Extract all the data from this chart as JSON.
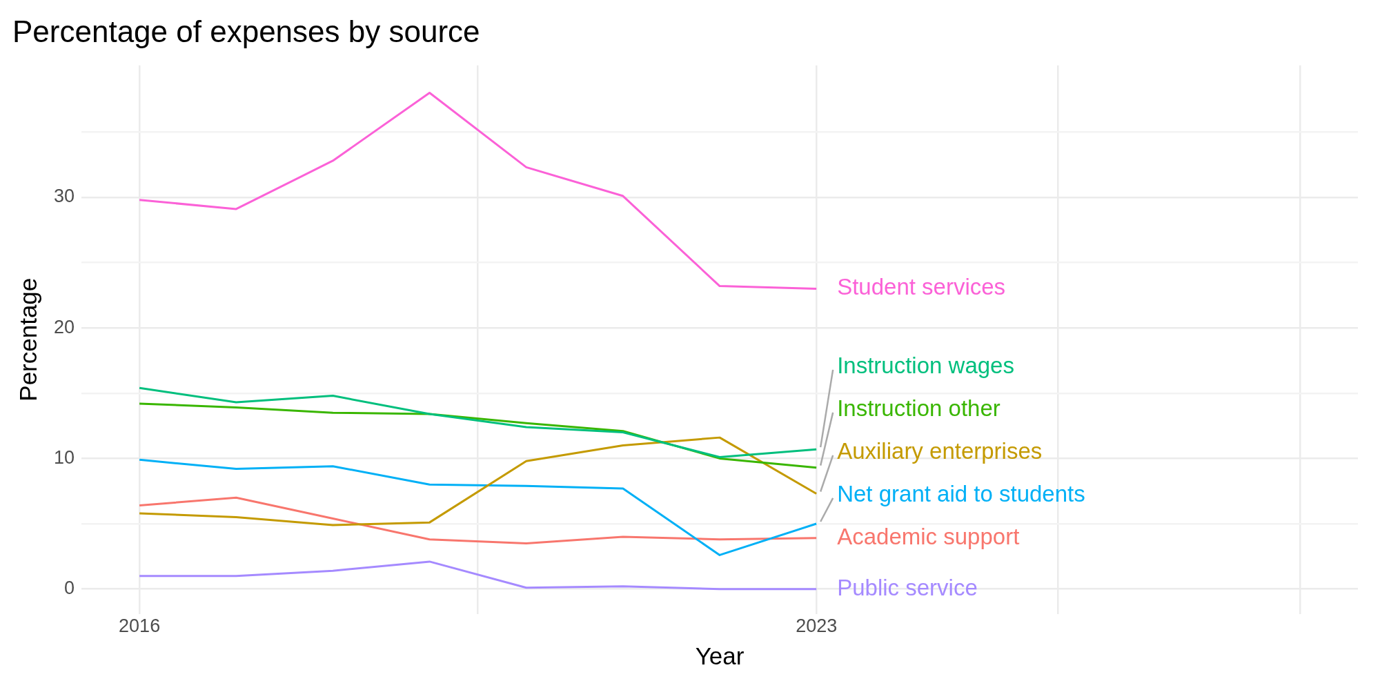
{
  "chart_data": {
    "type": "line",
    "title": "Percentage of expenses by source",
    "xlabel": "Year",
    "ylabel": "Percentage",
    "x": [
      2016,
      2017,
      2018,
      2019,
      2020,
      2021,
      2022,
      2023
    ],
    "xlim": [
      2015.4,
      2028.6
    ],
    "xticks": [
      2016,
      {
        "value": 2019.5,
        "label": null
      },
      2023,
      {
        "value": 2025.5,
        "label": null
      },
      {
        "value": 2028,
        "label": null
      }
    ],
    "ylim": [
      -1.9,
      40.1
    ],
    "yticks": [
      0,
      {
        "value": 5,
        "label": null
      },
      10,
      {
        "value": 15,
        "label": null
      },
      20,
      {
        "value": 25,
        "label": null
      },
      30,
      {
        "value": 35,
        "label": null
      }
    ],
    "grid": true,
    "legend": false,
    "marker": "none",
    "line_style": "solid",
    "series": [
      {
        "name": "Student services",
        "color": "#fb61d7",
        "values": [
          29.8,
          29.1,
          32.8,
          38.0,
          32.3,
          30.1,
          23.2,
          23.0
        ]
      },
      {
        "name": "Instruction wages",
        "color": "#00bf7d",
        "values": [
          15.4,
          14.3,
          14.8,
          13.4,
          12.4,
          12.0,
          10.1,
          10.7
        ]
      },
      {
        "name": "Instruction other",
        "color": "#39b600",
        "values": [
          14.2,
          13.9,
          13.5,
          13.4,
          12.7,
          12.1,
          10.0,
          9.3
        ]
      },
      {
        "name": "Auxiliary enterprises",
        "color": "#c49a00",
        "values": [
          5.8,
          5.5,
          4.9,
          5.1,
          9.8,
          11.0,
          11.6,
          7.3
        ]
      },
      {
        "name": "Net grant aid to students",
        "color": "#00b0f6",
        "values": [
          9.9,
          9.2,
          9.4,
          8.0,
          7.9,
          7.7,
          2.6,
          5.0
        ]
      },
      {
        "name": "Academic support",
        "color": "#f8766d",
        "values": [
          6.4,
          7.0,
          5.4,
          3.8,
          3.5,
          4.0,
          3.8,
          3.9
        ]
      },
      {
        "name": "Public service",
        "color": "#a58aff",
        "values": [
          1.0,
          1.0,
          1.4,
          2.1,
          0.1,
          0.2,
          0.0,
          0.0
        ]
      }
    ]
  }
}
